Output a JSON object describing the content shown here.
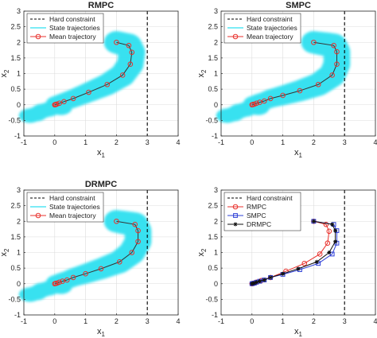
{
  "chart_data": [
    {
      "type": "line",
      "title": "RMPC",
      "xlabel": "x",
      "xlabel_sub": "1",
      "ylabel": "x",
      "ylabel_sub": "2",
      "xlim": [
        -1,
        4
      ],
      "ylim": [
        -1,
        3
      ],
      "xticks": [
        "-1",
        "0",
        "1",
        "2",
        "3",
        "4"
      ],
      "yticks": [
        "-1",
        "-0.5",
        "0",
        "0.5",
        "1",
        "1.5",
        "2",
        "2.5",
        "3"
      ],
      "grid": true,
      "legend_position": "top-left",
      "hard_constraint_x": 3,
      "cloud_color": "#2fe0f0",
      "legend": [
        {
          "label": "Hard constraint",
          "style": "dashed",
          "color": "#000000"
        },
        {
          "label": "State trajectories",
          "style": "solid",
          "color": "#2fe0f0"
        },
        {
          "label": "Mean trajectory",
          "style": "circle-line",
          "color": "#e8322d"
        }
      ],
      "series": [
        {
          "color": "#e8322d",
          "marker": "circle",
          "x": [
            2,
            2.4,
            2.5,
            2.45,
            2.2,
            1.7,
            1.1,
            0.6,
            0.3,
            0.15,
            0.07,
            0.03,
            0.01,
            0
          ],
          "y": [
            2,
            1.9,
            1.68,
            1.3,
            0.95,
            0.65,
            0.4,
            0.2,
            0.1,
            0.05,
            0.02,
            0.01,
            0,
            0
          ]
        }
      ]
    },
    {
      "type": "line",
      "title": "SMPC",
      "xlabel": "x",
      "xlabel_sub": "1",
      "ylabel": "x",
      "ylabel_sub": "2",
      "xlim": [
        -1,
        4
      ],
      "ylim": [
        -1,
        3
      ],
      "xticks": [
        "-1",
        "0",
        "1",
        "2",
        "3",
        "4"
      ],
      "yticks": [
        "-1",
        "-0.5",
        "0",
        "0.5",
        "1",
        "1.5",
        "2",
        "2.5",
        "3"
      ],
      "grid": true,
      "legend_position": "top-left",
      "hard_constraint_x": 3,
      "cloud_color": "#2fe0f0",
      "legend": [
        {
          "label": "Hard constraint",
          "style": "dashed",
          "color": "#000000"
        },
        {
          "label": "State trajectories",
          "style": "solid",
          "color": "#2fe0f0"
        },
        {
          "label": "Mean trajectory",
          "style": "circle-line",
          "color": "#e8322d"
        }
      ],
      "series": [
        {
          "color": "#e8322d",
          "marker": "circle",
          "x": [
            2,
            2.65,
            2.75,
            2.75,
            2.6,
            2.15,
            1.55,
            1,
            0.6,
            0.4,
            0.25,
            0.15,
            0.08,
            0.03,
            0
          ],
          "y": [
            2,
            1.9,
            1.7,
            1.3,
            0.95,
            0.65,
            0.45,
            0.3,
            0.2,
            0.12,
            0.08,
            0.05,
            0.02,
            0.01,
            0
          ]
        }
      ]
    },
    {
      "type": "line",
      "title": "DRMPC",
      "xlabel": "x",
      "xlabel_sub": "1",
      "ylabel": "x",
      "ylabel_sub": "2",
      "xlim": [
        -1,
        4
      ],
      "ylim": [
        -1,
        3
      ],
      "xticks": [
        "-1",
        "0",
        "1",
        "2",
        "3",
        "4"
      ],
      "yticks": [
        "-1",
        "-0.5",
        "0",
        "0.5",
        "1",
        "1.5",
        "2",
        "2.5",
        "3"
      ],
      "grid": true,
      "legend_position": "top-left",
      "hard_constraint_x": 3,
      "cloud_color": "#2fe0f0",
      "legend": [
        {
          "label": "Hard constraint",
          "style": "dashed",
          "color": "#000000"
        },
        {
          "label": "State trajectories",
          "style": "solid",
          "color": "#2fe0f0"
        },
        {
          "label": "Mean trajectory",
          "style": "circle-line",
          "color": "#e8322d"
        }
      ],
      "series": [
        {
          "color": "#e8322d",
          "marker": "circle",
          "x": [
            2,
            2.6,
            2.7,
            2.7,
            2.5,
            2.1,
            1.5,
            1,
            0.6,
            0.4,
            0.25,
            0.15,
            0.08,
            0.03,
            0
          ],
          "y": [
            2,
            1.9,
            1.7,
            1.35,
            1,
            0.7,
            0.48,
            0.32,
            0.2,
            0.12,
            0.08,
            0.05,
            0.02,
            0.01,
            0
          ]
        }
      ]
    },
    {
      "type": "line",
      "title": "",
      "xlabel": "x",
      "xlabel_sub": "1",
      "ylabel": "x",
      "ylabel_sub": "2",
      "xlim": [
        -1,
        4
      ],
      "ylim": [
        -1,
        3
      ],
      "xticks": [
        "-1",
        "0",
        "1",
        "2",
        "3",
        "4"
      ],
      "yticks": [
        "-1",
        "-0.5",
        "0",
        "0.5",
        "1",
        "1.5",
        "2",
        "2.5",
        "3"
      ],
      "grid": true,
      "legend_position": "top-left",
      "hard_constraint_x": 3,
      "legend": [
        {
          "label": "Hard constraint",
          "style": "dashed",
          "color": "#000000"
        },
        {
          "label": "RMPC",
          "style": "circle-line",
          "color": "#e8322d"
        },
        {
          "label": "SMPC",
          "style": "square-line",
          "color": "#2d3fd6"
        },
        {
          "label": "DRMPC",
          "style": "star-line",
          "color": "#111111"
        }
      ],
      "series": [
        {
          "name": "RMPC",
          "color": "#e8322d",
          "marker": "circle",
          "x": [
            2,
            2.4,
            2.5,
            2.45,
            2.2,
            1.7,
            1.1,
            0.6,
            0.3,
            0.15,
            0.07,
            0.03,
            0.01,
            0
          ],
          "y": [
            2,
            1.9,
            1.68,
            1.3,
            0.95,
            0.65,
            0.4,
            0.2,
            0.1,
            0.05,
            0.02,
            0.01,
            0,
            0
          ]
        },
        {
          "name": "SMPC",
          "color": "#2d3fd6",
          "marker": "square",
          "x": [
            2,
            2.65,
            2.75,
            2.75,
            2.6,
            2.15,
            1.55,
            1,
            0.6,
            0.4,
            0.25,
            0.15,
            0.08,
            0.03,
            0
          ],
          "y": [
            2,
            1.9,
            1.7,
            1.3,
            0.95,
            0.65,
            0.45,
            0.3,
            0.2,
            0.12,
            0.08,
            0.05,
            0.02,
            0.01,
            0
          ]
        },
        {
          "name": "DRMPC",
          "color": "#111111",
          "marker": "star",
          "x": [
            2,
            2.6,
            2.7,
            2.7,
            2.5,
            2.1,
            1.5,
            1,
            0.6,
            0.4,
            0.25,
            0.15,
            0.08,
            0.03,
            0
          ],
          "y": [
            2,
            1.9,
            1.7,
            1.35,
            1,
            0.7,
            0.48,
            0.32,
            0.2,
            0.12,
            0.08,
            0.05,
            0.02,
            0.01,
            0
          ]
        }
      ]
    }
  ]
}
